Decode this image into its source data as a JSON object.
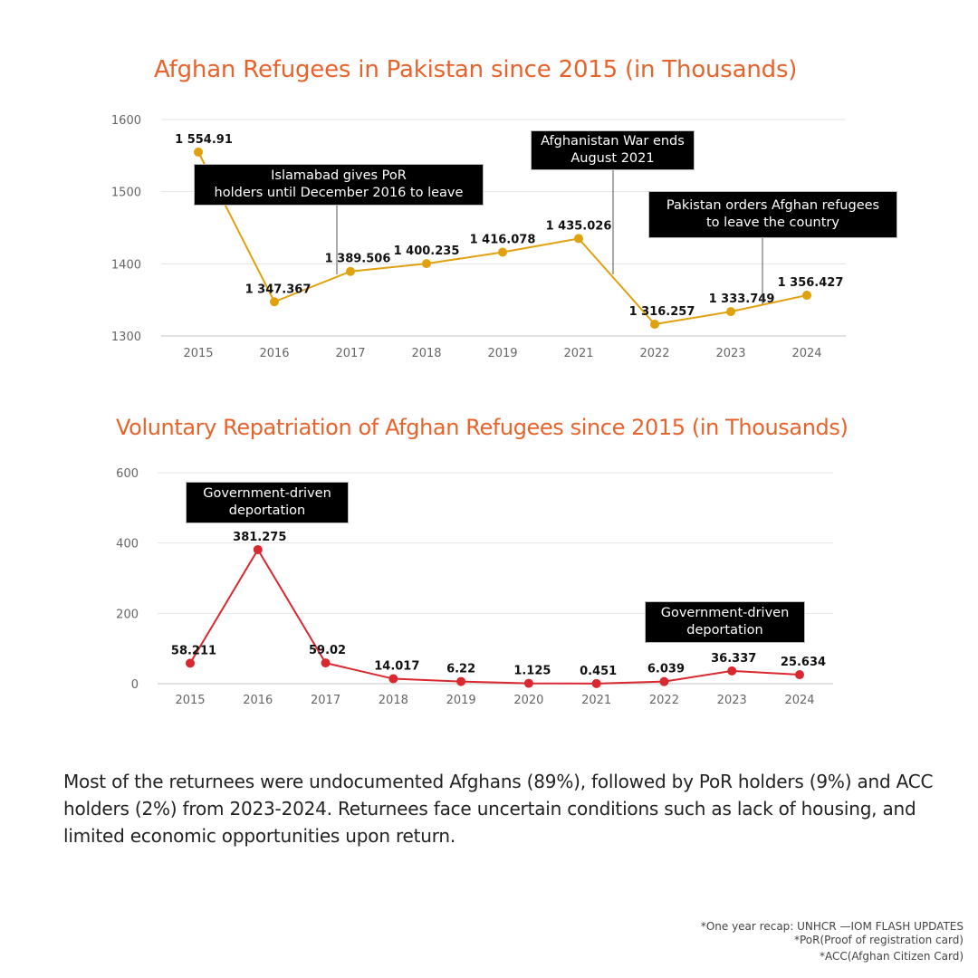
{
  "chart_data": [
    {
      "type": "line",
      "title": "Afghan Refugees in Pakistan since 2015 (in Thousands)",
      "categories": [
        "2015",
        "2016",
        "2017",
        "2018",
        "2019",
        "2021",
        "2022",
        "2023",
        "2024"
      ],
      "values": [
        1554.91,
        1347.367,
        1389.506,
        1400.235,
        1416.078,
        1435.026,
        1316.257,
        1333.749,
        1356.427
      ],
      "data_labels": [
        "1 554.91",
        "1 347.367",
        "1 389.506",
        "1 400.235",
        "1 416.078",
        "1 435.026",
        "1 316.257",
        "1 333.749",
        "1 356.427"
      ],
      "yticks": [
        "1300",
        "1400",
        "1500",
        "1600"
      ],
      "ylim": [
        1300,
        1600
      ],
      "color": "#e0a10f",
      "grid": true,
      "annotations": [
        {
          "text": "Islamabad gives PoR\nholders until December 2016 to leave"
        },
        {
          "text": "Afghanistan War ends\nAugust 2021"
        },
        {
          "text": "Pakistan orders Afghan refugees\nto leave the country"
        }
      ]
    },
    {
      "type": "line",
      "title": "Voluntary Repatriation of Afghan Refugees since 2015 (in Thousands)",
      "categories": [
        "2015",
        "2016",
        "2017",
        "2018",
        "2019",
        "2020",
        "2021",
        "2022",
        "2023",
        "2024"
      ],
      "values": [
        58.211,
        381.275,
        59.02,
        14.017,
        6.22,
        1.125,
        0.451,
        6.039,
        36.337,
        25.634
      ],
      "data_labels": [
        "58.211",
        "381.275",
        "59.02",
        "14.017",
        "6.22",
        "1.125",
        "0.451",
        "6.039",
        "36.337",
        "25.634"
      ],
      "yticks": [
        "0",
        "200",
        "400",
        "600"
      ],
      "ylim": [
        0,
        600
      ],
      "color": "#d9282f",
      "grid": true,
      "annotations": [
        {
          "text": "Government-driven\ndeportation"
        },
        {
          "text": "Government-driven\ndeportation"
        }
      ]
    }
  ],
  "summary": "Most of the returnees were undocumented Afghans (89%), followed by PoR holders (9%) and ACC holders (2%) from 2023-2024. Returnees face uncertain conditions such as lack of housing, and limited economic opportunities upon return.",
  "footnotes": [
    "*One year recap: UNHCR —IOM FLASH UPDATES",
    "*PoR(Proof of registration card)",
    "*ACC(Afghan Citizen Card)"
  ]
}
